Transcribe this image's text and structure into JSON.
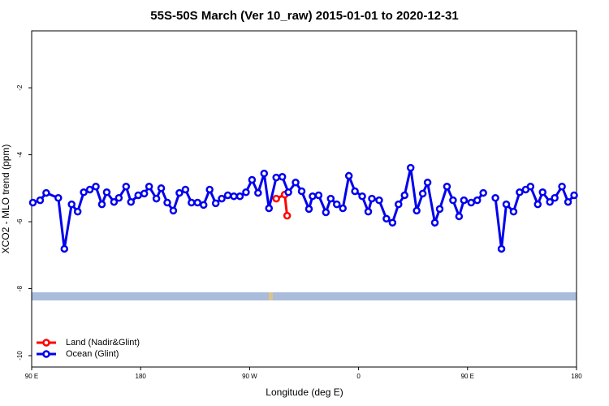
{
  "chart_data": {
    "type": "line",
    "title": "55S-50S March (Ver 10_raw)   2015-01-01 to 2020-12-31",
    "x_label": "Longitude (deg E)",
    "y_label": "XCO2 - MLO trend (ppm)",
    "xlim": [
      90,
      540
    ],
    "ylim": [
      -10.34,
      -0.3
    ],
    "xticks": [
      {
        "value": 90,
        "label": "90 E"
      },
      180,
      {
        "value": 270,
        "label": "90 W"
      },
      {
        "value": 360,
        "label": "0"
      },
      {
        "value": 450,
        "label": "90 E"
      },
      {
        "value": 540,
        "label": "180"
      }
    ],
    "yticks": [
      -2,
      -4,
      -6,
      -8,
      -10
    ],
    "legend": "bottom-left",
    "series": [
      {
        "name": "Land (Nadir&Glint)",
        "color": "#ff0000",
        "x": [
          292,
          299,
          301
        ],
        "values": [
          -5.31,
          -5.19,
          -5.82
        ]
      },
      {
        "name": "Ocean (Glint)",
        "color": "#0000ee",
        "x": [
          91,
          97,
          102,
          112,
          117,
          123,
          128,
          133,
          138,
          143,
          148,
          152,
          158,
          162,
          168,
          172,
          178,
          183,
          187,
          193,
          197,
          202,
          207,
          212,
          217,
          222,
          227,
          232,
          237,
          242,
          247,
          252,
          257,
          262,
          267,
          272,
          277,
          282,
          286,
          292,
          297,
          302,
          308,
          313,
          319,
          322,
          327,
          333,
          337,
          342,
          347,
          352,
          357,
          363,
          368,
          371,
          377,
          383,
          388,
          393,
          398,
          403,
          408,
          413,
          417,
          423,
          427,
          433,
          438,
          443,
          447,
          453,
          458,
          463,
          468,
          473,
          478,
          482,
          488,
          493,
          498,
          502,
          508,
          512,
          518,
          522,
          528,
          533,
          538
        ],
        "values": [
          -5.43,
          -5.36,
          -5.14,
          -5.29,
          -6.81,
          -5.48,
          -5.7,
          -5.12,
          -5.04,
          -4.95,
          -5.48,
          -5.12,
          -5.41,
          -5.29,
          -4.95,
          -5.41,
          -5.21,
          -5.16,
          -4.95,
          -5.31,
          -5.0,
          -5.43,
          -5.67,
          -5.14,
          -5.04,
          -5.43,
          -5.43,
          -5.5,
          -5.04,
          -5.45,
          -5.31,
          -5.21,
          -5.24,
          -5.24,
          -5.12,
          -4.75,
          -5.14,
          -4.56,
          -5.6,
          -4.68,
          -4.66,
          -5.12,
          -4.83,
          -5.09,
          -5.62,
          -5.24,
          -5.21,
          -5.72,
          -5.31,
          -5.48,
          -5.6,
          -4.63,
          -5.09,
          -5.24,
          -5.7,
          -5.31,
          -5.36,
          -5.91,
          -6.03,
          -5.48,
          -5.21,
          -4.39,
          -5.67,
          -5.16,
          -4.83,
          -6.03,
          -5.62,
          -4.95,
          -5.36,
          -5.84,
          -5.36,
          -5.43,
          -5.36,
          -5.14,
          null,
          -5.29,
          -6.81,
          -5.48,
          -5.7,
          -5.12,
          -5.04,
          -4.95,
          -5.48,
          -5.12,
          -5.41,
          -5.29,
          -4.95,
          -5.41,
          -5.21
        ]
      }
    ]
  }
}
